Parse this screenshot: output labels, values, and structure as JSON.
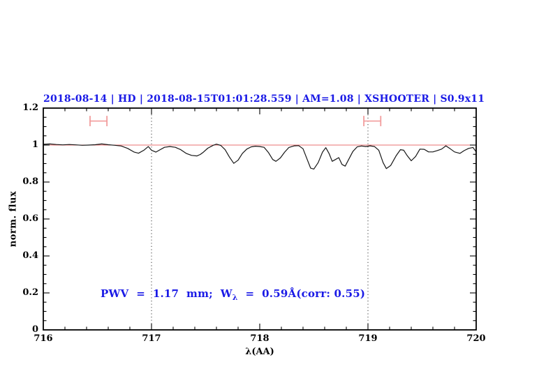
{
  "chart_data": {
    "type": "line",
    "title": "2018-08-14 | HD | 2018-08-15T01:01:28.559 | AM=1.08 | XSHOOTER | S0.9x11",
    "xlabel": "λ(AA)",
    "ylabel": "norm. flux",
    "xlim": [
      716,
      720
    ],
    "ylim": [
      0,
      1.2
    ],
    "xticks": {
      "values": [
        716,
        717,
        718,
        719,
        720
      ],
      "labels": [
        "716",
        "717",
        "718",
        "719",
        "720"
      ]
    },
    "yticks": {
      "values": [
        0,
        0.2,
        0.4,
        0.6,
        0.8,
        1,
        1.2
      ],
      "labels": [
        "0",
        "0.2",
        "0.4",
        "0.6",
        "0.8",
        "1",
        "1.2"
      ]
    },
    "x_minor_step": 0.2,
    "y_minor_step": 0.05,
    "grid": false,
    "legend": "none",
    "vlines": [
      717,
      719
    ],
    "colors": {
      "title": "#1a1ae6",
      "annotation": "#1a1ae6",
      "continuum": "#e87070",
      "marker": "#f29c9c",
      "spectrum": "#161616",
      "axis": "#000000",
      "vline": "#3a3a3a"
    },
    "markers": [
      {
        "x": 716.51,
        "xerr": 0.078,
        "y": 1.13,
        "cap": 0.028
      },
      {
        "x": 719.04,
        "xerr": 0.078,
        "y": 1.13,
        "cap": 0.028
      }
    ],
    "annotation": {
      "prefix": "PWV  =  1.17  mm;  W",
      "sub": "λ",
      "suffix": "  =  0.59Å(corr: 0.55)",
      "full_text": "PWV = 1.17 mm; W_λ = 0.59Å(corr: 0.55)",
      "x": 716.53,
      "y": 0.19
    },
    "series": [
      {
        "name": "continuum",
        "color": "#e87070",
        "width": 1,
        "points": [
          [
            716,
            1
          ],
          [
            720,
            1
          ]
        ]
      },
      {
        "name": "spectrum",
        "color": "#161616",
        "width": 1.2,
        "points": [
          [
            716.0,
            1.004
          ],
          [
            716.06,
            1.006
          ],
          [
            716.12,
            1.003
          ],
          [
            716.18,
            1.001
          ],
          [
            716.24,
            1.003
          ],
          [
            716.3,
            1.001
          ],
          [
            716.36,
            0.999
          ],
          [
            716.42,
            1.0
          ],
          [
            716.48,
            1.002
          ],
          [
            716.54,
            1.006
          ],
          [
            716.6,
            1.002
          ],
          [
            716.66,
            0.999
          ],
          [
            716.72,
            0.995
          ],
          [
            716.78,
            0.982
          ],
          [
            716.84,
            0.962
          ],
          [
            716.88,
            0.956
          ],
          [
            716.93,
            0.972
          ],
          [
            716.97,
            0.992
          ],
          [
            717.0,
            0.972
          ],
          [
            717.04,
            0.962
          ],
          [
            717.08,
            0.975
          ],
          [
            717.12,
            0.988
          ],
          [
            717.17,
            0.992
          ],
          [
            717.22,
            0.988
          ],
          [
            717.27,
            0.975
          ],
          [
            717.32,
            0.955
          ],
          [
            717.37,
            0.944
          ],
          [
            717.42,
            0.941
          ],
          [
            717.45,
            0.949
          ],
          [
            717.48,
            0.962
          ],
          [
            717.52,
            0.983
          ],
          [
            717.57,
            0.999
          ],
          [
            717.6,
            1.005
          ],
          [
            717.64,
            0.998
          ],
          [
            717.68,
            0.975
          ],
          [
            717.72,
            0.935
          ],
          [
            717.76,
            0.901
          ],
          [
            717.8,
            0.918
          ],
          [
            717.84,
            0.955
          ],
          [
            717.88,
            0.978
          ],
          [
            717.92,
            0.99
          ],
          [
            717.96,
            0.994
          ],
          [
            718.0,
            0.992
          ],
          [
            718.04,
            0.988
          ],
          [
            718.08,
            0.96
          ],
          [
            718.12,
            0.922
          ],
          [
            718.15,
            0.912
          ],
          [
            718.19,
            0.93
          ],
          [
            718.23,
            0.962
          ],
          [
            718.27,
            0.987
          ],
          [
            718.32,
            0.996
          ],
          [
            718.36,
            0.997
          ],
          [
            718.4,
            0.98
          ],
          [
            718.44,
            0.92
          ],
          [
            718.47,
            0.875
          ],
          [
            718.5,
            0.87
          ],
          [
            718.54,
            0.905
          ],
          [
            718.58,
            0.962
          ],
          [
            718.61,
            0.986
          ],
          [
            718.64,
            0.955
          ],
          [
            718.67,
            0.912
          ],
          [
            718.7,
            0.922
          ],
          [
            718.73,
            0.932
          ],
          [
            718.76,
            0.895
          ],
          [
            718.79,
            0.886
          ],
          [
            718.82,
            0.92
          ],
          [
            718.86,
            0.965
          ],
          [
            718.9,
            0.99
          ],
          [
            718.94,
            0.995
          ],
          [
            718.98,
            0.992
          ],
          [
            719.02,
            0.996
          ],
          [
            719.06,
            0.992
          ],
          [
            719.1,
            0.972
          ],
          [
            719.14,
            0.905
          ],
          [
            719.17,
            0.873
          ],
          [
            719.21,
            0.89
          ],
          [
            719.26,
            0.942
          ],
          [
            719.3,
            0.975
          ],
          [
            719.33,
            0.972
          ],
          [
            719.36,
            0.945
          ],
          [
            719.4,
            0.915
          ],
          [
            719.44,
            0.938
          ],
          [
            719.48,
            0.978
          ],
          [
            719.52,
            0.977
          ],
          [
            719.56,
            0.963
          ],
          [
            719.6,
            0.963
          ],
          [
            719.64,
            0.97
          ],
          [
            719.68,
            0.978
          ],
          [
            719.72,
            0.996
          ],
          [
            719.76,
            0.98
          ],
          [
            719.8,
            0.963
          ],
          [
            719.85,
            0.955
          ],
          [
            719.89,
            0.97
          ],
          [
            719.93,
            0.982
          ],
          [
            719.97,
            0.987
          ],
          [
            720.0,
            0.963
          ]
        ]
      }
    ]
  }
}
